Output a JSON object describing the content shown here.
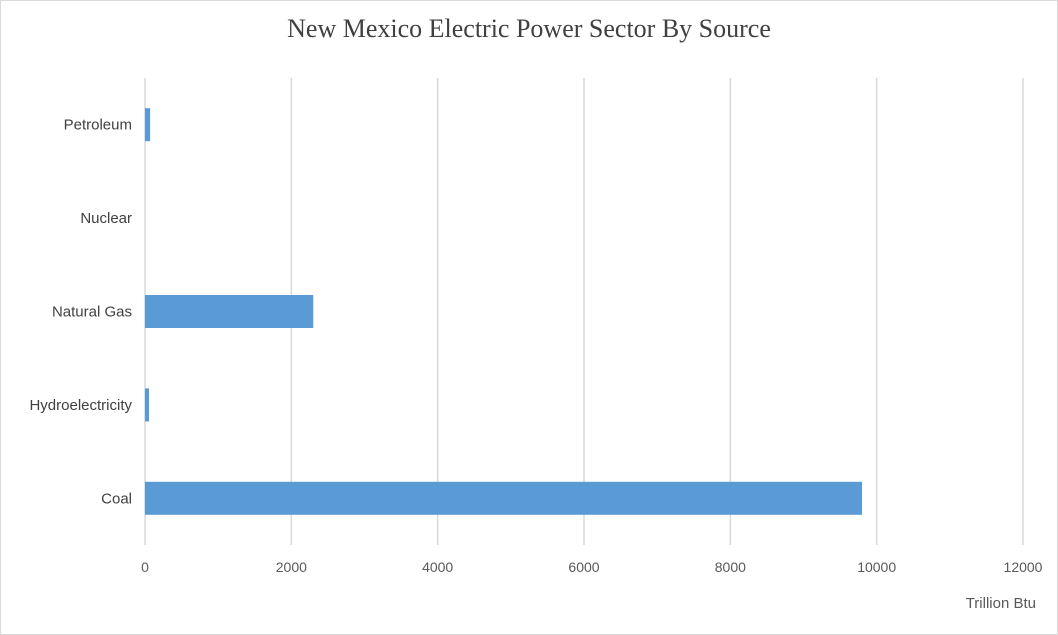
{
  "chart_data": {
    "type": "bar",
    "orientation": "horizontal",
    "title": "New Mexico Electric Power Sector By Source",
    "xlabel": "Trillion Btu",
    "ylabel": "",
    "categories": [
      "Coal",
      "Hydroelectricity",
      "Natural Gas",
      "Nuclear",
      "Petroleum"
    ],
    "values": [
      9800,
      55,
      2300,
      0,
      70
    ],
    "xlim": [
      0,
      12000
    ],
    "xticks": [
      0,
      2000,
      4000,
      6000,
      8000,
      10000,
      12000
    ],
    "grid": true,
    "legend": "none",
    "bar_color": "#5b9bd5",
    "grid_color": "#d9d9d9"
  }
}
